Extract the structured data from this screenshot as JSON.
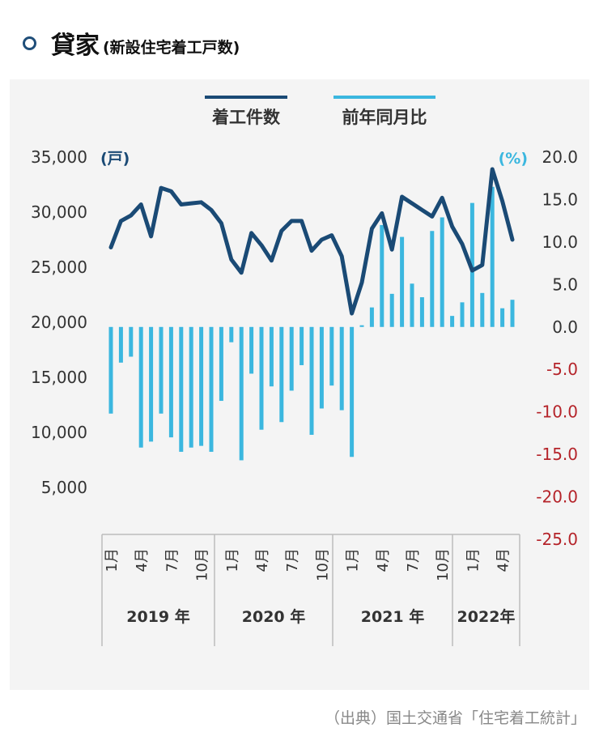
{
  "title": {
    "main": "貸家",
    "sub": "(新設住宅着工戸数)"
  },
  "source": "（出典）国土交通省「住宅着工統計」",
  "colors": {
    "line": "#1a4a75",
    "bar": "#3bb7df",
    "left_axis_text": "#333333",
    "right_positive": "#333333",
    "right_negative": "#b5242a",
    "right_unit": "#3bb7df",
    "left_unit": "#1a4a75"
  },
  "chart_data": {
    "type": "bar+line",
    "legend": [
      {
        "name": "着工件数",
        "kind": "line"
      },
      {
        "name": "前年同月比",
        "kind": "bar"
      }
    ],
    "y_left": {
      "unit": "(戸)",
      "ticks": [
        "35,000",
        "30,000",
        "25,000",
        "20,000",
        "15,000",
        "10,000",
        "5,000"
      ],
      "range": [
        5000,
        35000
      ]
    },
    "y_right": {
      "unit": "(%)",
      "ticks": [
        "20.0",
        "15.0",
        "10.0",
        "5.0",
        "0.0",
        "-5.0",
        "-10.0",
        "-15.0",
        "-20.0",
        "-25.0"
      ],
      "range": [
        -25,
        20
      ]
    },
    "month_labels": [
      {
        "index": 0,
        "label": "1月"
      },
      {
        "index": 3,
        "label": "4月"
      },
      {
        "index": 6,
        "label": "7月"
      },
      {
        "index": 9,
        "label": "10月"
      },
      {
        "index": 12,
        "label": "1月"
      },
      {
        "index": 15,
        "label": "4月"
      },
      {
        "index": 18,
        "label": "7月"
      },
      {
        "index": 21,
        "label": "10月"
      },
      {
        "index": 24,
        "label": "1月"
      },
      {
        "index": 27,
        "label": "4月"
      },
      {
        "index": 30,
        "label": "7月"
      },
      {
        "index": 33,
        "label": "10月"
      },
      {
        "index": 36,
        "label": "1月"
      },
      {
        "index": 39,
        "label": "4月"
      }
    ],
    "years": [
      {
        "label": "2019 年",
        "start": 0,
        "end": 11
      },
      {
        "label": "2020 年",
        "start": 12,
        "end": 23
      },
      {
        "label": "2021 年",
        "start": 24,
        "end": 35
      },
      {
        "label": "2022年",
        "start": 36,
        "end": 40
      }
    ],
    "series": [
      {
        "name": "着工件数",
        "axis": "left",
        "values": [
          26800,
          29200,
          29700,
          30700,
          27800,
          32200,
          31900,
          30700,
          30800,
          30900,
          30200,
          29000,
          25700,
          24500,
          28100,
          27000,
          25600,
          28300,
          29200,
          29200,
          26500,
          27500,
          27900,
          26000,
          20800,
          23600,
          28500,
          29900,
          26600,
          31400,
          30800,
          30200,
          29600,
          31300,
          28700,
          27100,
          24700,
          25200,
          33900,
          31000,
          27500
        ]
      },
      {
        "name": "前年同月比",
        "axis": "right",
        "values": [
          -10.2,
          -4.2,
          -3.5,
          -14.2,
          -13.5,
          -10.2,
          -13.0,
          -14.7,
          -14.2,
          -14.0,
          -14.7,
          -8.7,
          -1.8,
          -15.7,
          -5.5,
          -12.1,
          -7.0,
          -11.2,
          -7.5,
          -4.5,
          -12.7,
          -9.6,
          -6.9,
          -9.8,
          -15.3,
          0.2,
          2.3,
          12.0,
          3.9,
          10.6,
          5.1,
          3.5,
          11.3,
          12.9,
          1.3,
          2.9,
          14.6,
          4.0,
          16.5,
          2.2,
          3.2
        ]
      }
    ]
  }
}
